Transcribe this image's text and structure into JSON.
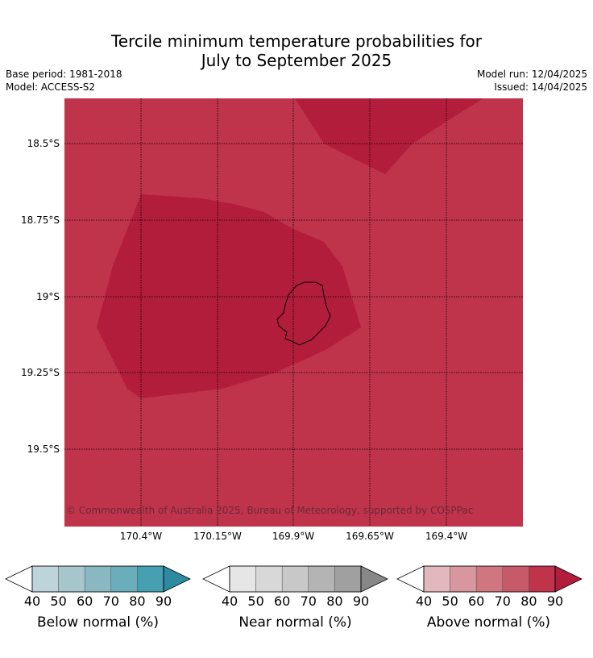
{
  "title": {
    "line1": "Tercile minimum temperature probabilities for",
    "line2": "July to September 2025"
  },
  "meta": {
    "base_period": "Base period: 1981-2018",
    "model": "Model: ACCESS-S2",
    "model_run": "Model run: 12/04/2025",
    "issued": "Issued: 14/04/2025"
  },
  "map": {
    "lat_labels": [
      "18.5°S",
      "18.75°S",
      "19°S",
      "19.25°S",
      "19.5°S"
    ],
    "lon_labels": [
      "170.4°W",
      "170.15°W",
      "169.9°W",
      "169.65°W",
      "169.4°W"
    ],
    "copyright": "© Commonwealth of Australia 2025, Bureau of Meteorology, supported by COSPPac",
    "colors": {
      "above_80": "#bf334b",
      "above_90": "#b21d3b",
      "coast": "#000000"
    }
  },
  "colorbars": [
    {
      "label": "Below normal (%)",
      "ticks": [
        "40",
        "50",
        "60",
        "70",
        "80",
        "90"
      ],
      "colors": [
        "#ffffff",
        "#bdd4da",
        "#a6c6cc",
        "#89b8c3",
        "#6aadbb",
        "#46a0b2",
        "#2e8aa0"
      ]
    },
    {
      "label": "Near normal (%)",
      "ticks": [
        "40",
        "50",
        "60",
        "70",
        "80",
        "90"
      ],
      "colors": [
        "#ffffff",
        "#e6e6e6",
        "#d8d8d8",
        "#c8c8c8",
        "#b4b4b4",
        "#a0a0a0",
        "#878787"
      ]
    },
    {
      "label": "Above normal (%)",
      "ticks": [
        "40",
        "50",
        "60",
        "70",
        "80",
        "90"
      ],
      "colors": [
        "#ffffff",
        "#e3b8bd",
        "#d8969e",
        "#cf7680",
        "#c65a68",
        "#bf334b",
        "#b21d3b"
      ]
    }
  ]
}
